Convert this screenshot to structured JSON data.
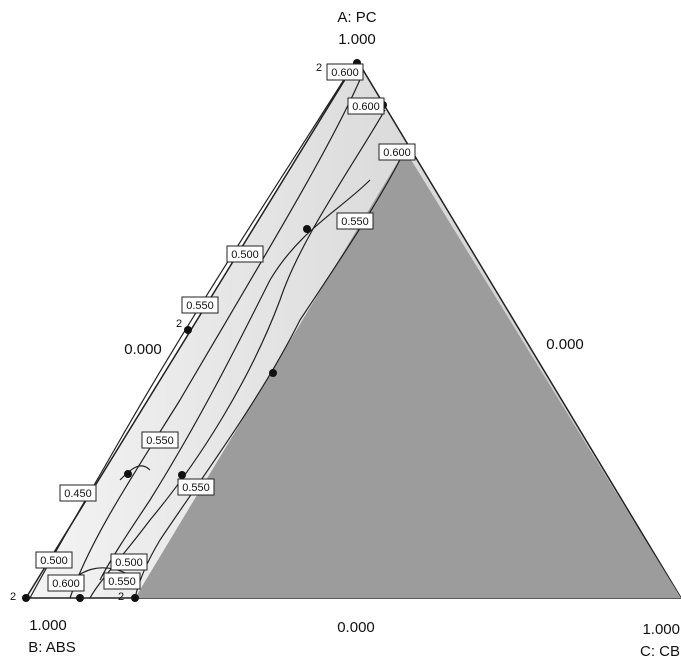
{
  "chart_data": {
    "type": "ternary-contour",
    "vertex_labels": {
      "top": "A: PC",
      "left": "B: ABS",
      "right": "C: CB"
    },
    "tick_labels": {
      "top": "1.000",
      "left_side": "0.000",
      "right_side": "0.000",
      "bottom_left": "1.000",
      "bottom_mid": "0.000",
      "bottom_right": "1.000"
    },
    "contour_labels": [
      "0.600",
      "0.600",
      "0.600",
      "0.550",
      "0.500",
      "0.550",
      "0.550",
      "0.550",
      "0.450",
      "0.500",
      "0.500",
      "0.600",
      "0.550"
    ],
    "replicate_labels": [
      "2",
      "2",
      "2",
      "2"
    ]
  }
}
